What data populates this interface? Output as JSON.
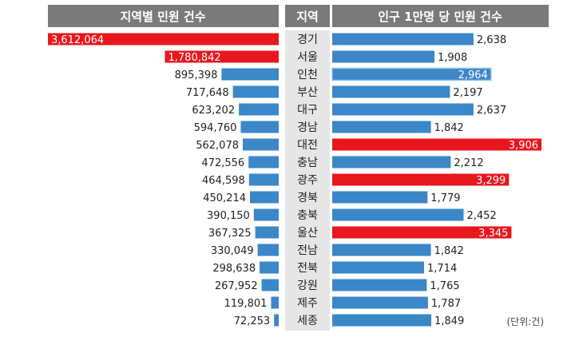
{
  "headers": {
    "left": "지역별 민원 건수",
    "middle": "지역",
    "right": "인구 1만명 당 민원 건수"
  },
  "unit_note": "(단위:건)",
  "colors": {
    "header_bg": "#7a7a7a",
    "bar_blue": "#3b87c8",
    "bar_red": "#e8171d",
    "region_bg": "#e6e6e6"
  },
  "chart_data": [
    {
      "type": "bar",
      "title": "지역별 민원 건수",
      "orientation": "horizontal",
      "direction": "right-to-left",
      "categories": [
        "경기",
        "서울",
        "인천",
        "부산",
        "대구",
        "경남",
        "대전",
        "충남",
        "광주",
        "경북",
        "충북",
        "울산",
        "전남",
        "전북",
        "강원",
        "제주",
        "세종"
      ],
      "values": [
        3612064,
        1780842,
        895398,
        717648,
        623202,
        594760,
        562078,
        472556,
        464598,
        450214,
        390150,
        367325,
        330049,
        298638,
        267952,
        119801,
        72253
      ],
      "labels": [
        "3,612,064",
        "1,780,842",
        "895,398",
        "717,648",
        "623,202",
        "594,760",
        "562,078",
        "472,556",
        "464,598",
        "450,214",
        "390,150",
        "367,325",
        "330,049",
        "298,638",
        "267,952",
        "119,801",
        "72,253"
      ],
      "highlight": [
        "경기",
        "서울"
      ]
    },
    {
      "type": "bar",
      "title": "인구 1만명 당 민원 건수",
      "orientation": "horizontal",
      "direction": "left-to-right",
      "categories": [
        "경기",
        "서울",
        "인천",
        "부산",
        "대구",
        "경남",
        "대전",
        "충남",
        "광주",
        "경북",
        "충북",
        "울산",
        "전남",
        "전북",
        "강원",
        "제주",
        "세종"
      ],
      "values": [
        2638,
        1908,
        2964,
        2197,
        2637,
        1842,
        3906,
        2212,
        3299,
        1779,
        2452,
        3345,
        1842,
        1714,
        1765,
        1787,
        1849
      ],
      "labels": [
        "2,638",
        "1,908",
        "2,964",
        "2,197",
        "2,637",
        "1,842",
        "3,906",
        "2,212",
        "3,299",
        "1,779",
        "2,452",
        "3,345",
        "1,842",
        "1,714",
        "1,765",
        "1,787",
        "1,849"
      ],
      "highlight": [
        "대전",
        "광주",
        "울산"
      ]
    }
  ]
}
